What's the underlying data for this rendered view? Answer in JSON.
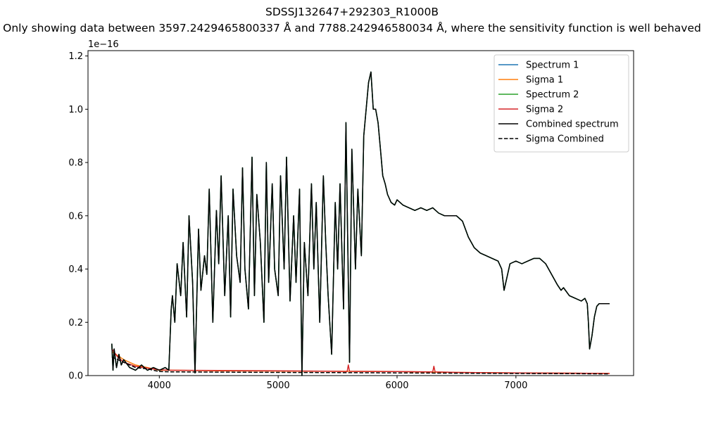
{
  "chart_data": {
    "type": "line",
    "title": "SDSSJ132647+292303_R1000B",
    "subtitle": "Only showing data between 3597.2429465800337 Å and 7788.242946580034 Å, where the sensitivity function is well behaved",
    "xlabel": "",
    "ylabel": "",
    "y_offset_label": "1e−16",
    "xlim": [
      3400,
      7990
    ],
    "ylim": [
      0,
      1.22
    ],
    "xticks": [
      4000,
      5000,
      6000,
      7000
    ],
    "yticks": [
      0.0,
      0.2,
      0.4,
      0.6,
      0.8,
      1.0,
      1.2
    ],
    "xtick_labels": [
      "4000",
      "5000",
      "6000",
      "7000"
    ],
    "ytick_labels": [
      "0.0",
      "0.2",
      "0.4",
      "0.6",
      "0.8",
      "1.0",
      "1.2"
    ],
    "grid": false,
    "legend_position": "top-right",
    "colors": {
      "spectrum1": "#1f77b4",
      "sigma1": "#ff7f0e",
      "spectrum2": "#2ca02c",
      "sigma2": "#d62728",
      "combined": "#000000",
      "sigma_combined": "#000000"
    },
    "series": [
      {
        "name": "Spectrum 1",
        "color": "#1f77b4",
        "dash": "solid",
        "x": [
          3600,
          3610,
          3620,
          3640,
          3660,
          3680,
          3700,
          3750,
          3800,
          3850,
          3900,
          3950,
          4000,
          4050,
          4080,
          4100,
          4110,
          4130,
          4150,
          4180,
          4200,
          4230,
          4250,
          4280,
          4300,
          4330,
          4350,
          4380,
          4400,
          4420,
          4450,
          4480,
          4500,
          4520,
          4550,
          4580,
          4600,
          4620,
          4650,
          4680,
          4700,
          4720,
          4750,
          4780,
          4800,
          4820,
          4850,
          4880,
          4900,
          4920,
          4950,
          4970,
          5000,
          5020,
          5050,
          5070,
          5100,
          5130,
          5150,
          5180,
          5200,
          5220,
          5250,
          5280,
          5300,
          5320,
          5350,
          5380,
          5400,
          5420,
          5450,
          5480,
          5500,
          5520,
          5550,
          5570,
          5600,
          5620,
          5650,
          5670,
          5700,
          5720,
          5740,
          5760,
          5780,
          5800,
          5820,
          5840,
          5860,
          5880,
          5900,
          5920,
          5950,
          5980,
          6000,
          6050,
          6100,
          6150,
          6200,
          6250,
          6300,
          6350,
          6400,
          6450,
          6500,
          6550,
          6600,
          6650,
          6700,
          6750,
          6800,
          6850,
          6880,
          6900,
          6950,
          7000,
          7050,
          7100,
          7150,
          7200,
          7250,
          7300,
          7350,
          7380,
          7400,
          7450,
          7500,
          7550,
          7580,
          7600,
          7610,
          7620,
          7640,
          7660,
          7680,
          7700,
          7750,
          7788
        ],
        "y": [
          0.12,
          0.02,
          0.1,
          0.03,
          0.08,
          0.04,
          0.06,
          0.03,
          0.02,
          0.04,
          0.02,
          0.03,
          0.02,
          0.03,
          0.02,
          0.25,
          0.3,
          0.2,
          0.42,
          0.3,
          0.5,
          0.22,
          0.6,
          0.35,
          0.01,
          0.55,
          0.32,
          0.45,
          0.38,
          0.7,
          0.2,
          0.62,
          0.42,
          0.75,
          0.3,
          0.6,
          0.22,
          0.7,
          0.45,
          0.35,
          0.78,
          0.4,
          0.25,
          0.82,
          0.3,
          0.68,
          0.5,
          0.2,
          0.8,
          0.35,
          0.72,
          0.4,
          0.3,
          0.75,
          0.4,
          0.82,
          0.28,
          0.6,
          0.35,
          0.7,
          0.0,
          0.5,
          0.3,
          0.72,
          0.4,
          0.65,
          0.2,
          0.75,
          0.5,
          0.3,
          0.08,
          0.65,
          0.4,
          0.72,
          0.25,
          0.95,
          0.05,
          0.85,
          0.4,
          0.7,
          0.45,
          0.9,
          1.0,
          1.1,
          1.14,
          1.0,
          1.0,
          0.95,
          0.85,
          0.75,
          0.72,
          0.68,
          0.65,
          0.64,
          0.66,
          0.64,
          0.63,
          0.62,
          0.63,
          0.62,
          0.63,
          0.61,
          0.6,
          0.6,
          0.6,
          0.58,
          0.52,
          0.48,
          0.46,
          0.45,
          0.44,
          0.43,
          0.4,
          0.32,
          0.42,
          0.43,
          0.42,
          0.43,
          0.44,
          0.44,
          0.42,
          0.38,
          0.34,
          0.32,
          0.33,
          0.3,
          0.29,
          0.28,
          0.29,
          0.27,
          0.2,
          0.1,
          0.15,
          0.22,
          0.26,
          0.27,
          0.27,
          0.27
        ]
      },
      {
        "name": "Sigma 1",
        "color": "#ff7f0e",
        "dash": "solid",
        "x": [
          3600,
          3700,
          3800,
          3900,
          4000,
          4100,
          4500,
          5000,
          5500,
          6000,
          6500,
          7000,
          7500,
          7788
        ],
        "y": [
          0.09,
          0.06,
          0.04,
          0.03,
          0.02,
          0.02,
          0.018,
          0.017,
          0.016,
          0.015,
          0.012,
          0.01,
          0.009,
          0.008
        ]
      },
      {
        "name": "Spectrum 2",
        "color": "#2ca02c",
        "dash": "solid",
        "x": [
          3600,
          3610,
          3620,
          3640,
          3660,
          3680,
          3700,
          3750,
          3800,
          3850,
          3900,
          3950,
          4000,
          4050,
          4080,
          4100,
          4110,
          4130,
          4150,
          4180,
          4200,
          4230,
          4250,
          4280,
          4300,
          4330,
          4350,
          4380,
          4400,
          4420,
          4450,
          4480,
          4500,
          4520,
          4550,
          4580,
          4600,
          4620,
          4650,
          4680,
          4700,
          4720,
          4750,
          4780,
          4800,
          4820,
          4850,
          4880,
          4900,
          4920,
          4950,
          4970,
          5000,
          5020,
          5050,
          5070,
          5100,
          5130,
          5150,
          5180,
          5200,
          5220,
          5250,
          5280,
          5300,
          5320,
          5350,
          5380,
          5400,
          5420,
          5450,
          5480,
          5500,
          5520,
          5550,
          5570,
          5600,
          5620,
          5650,
          5670,
          5700,
          5720,
          5740,
          5760,
          5780,
          5800,
          5820,
          5840,
          5860,
          5880,
          5900,
          5920,
          5950,
          5980,
          6000,
          6050,
          6100,
          6150,
          6200,
          6250,
          6300,
          6350,
          6400,
          6450,
          6500,
          6550,
          6600,
          6650,
          6700,
          6750,
          6800,
          6850,
          6880,
          6900,
          6950,
          7000,
          7050,
          7100,
          7150,
          7200,
          7250,
          7300,
          7350,
          7380,
          7400,
          7450,
          7500,
          7550,
          7580,
          7600,
          7610,
          7620,
          7640,
          7660,
          7680,
          7700,
          7750,
          7788
        ],
        "y": [
          0.12,
          0.02,
          0.1,
          0.03,
          0.08,
          0.04,
          0.06,
          0.03,
          0.02,
          0.04,
          0.02,
          0.03,
          0.02,
          0.03,
          0.02,
          0.25,
          0.3,
          0.2,
          0.42,
          0.3,
          0.5,
          0.22,
          0.6,
          0.35,
          0.01,
          0.55,
          0.32,
          0.45,
          0.38,
          0.7,
          0.2,
          0.62,
          0.42,
          0.75,
          0.3,
          0.6,
          0.22,
          0.7,
          0.45,
          0.35,
          0.78,
          0.4,
          0.25,
          0.82,
          0.3,
          0.68,
          0.5,
          0.2,
          0.8,
          0.35,
          0.72,
          0.4,
          0.3,
          0.75,
          0.4,
          0.82,
          0.28,
          0.6,
          0.35,
          0.7,
          0.0,
          0.5,
          0.3,
          0.72,
          0.4,
          0.65,
          0.2,
          0.75,
          0.5,
          0.3,
          0.08,
          0.65,
          0.4,
          0.72,
          0.25,
          0.95,
          0.05,
          0.85,
          0.4,
          0.7,
          0.45,
          0.9,
          1.0,
          1.1,
          1.14,
          1.0,
          1.0,
          0.95,
          0.85,
          0.75,
          0.72,
          0.68,
          0.65,
          0.64,
          0.66,
          0.64,
          0.63,
          0.62,
          0.63,
          0.62,
          0.63,
          0.61,
          0.6,
          0.6,
          0.6,
          0.58,
          0.52,
          0.48,
          0.46,
          0.45,
          0.44,
          0.43,
          0.4,
          0.32,
          0.42,
          0.43,
          0.42,
          0.43,
          0.44,
          0.44,
          0.42,
          0.38,
          0.34,
          0.32,
          0.33,
          0.3,
          0.29,
          0.28,
          0.29,
          0.27,
          0.2,
          0.1,
          0.15,
          0.22,
          0.26,
          0.27,
          0.27,
          0.27
        ]
      },
      {
        "name": "Sigma 2",
        "color": "#d62728",
        "dash": "solid",
        "x": [
          3600,
          3650,
          3700,
          3800,
          3900,
          4000,
          4100,
          4500,
          5000,
          5500,
          5580,
          5590,
          5600,
          6000,
          6300,
          6310,
          6320,
          6500,
          7000,
          7500,
          7788
        ],
        "y": [
          0.1,
          0.07,
          0.05,
          0.035,
          0.028,
          0.022,
          0.02,
          0.019,
          0.018,
          0.016,
          0.015,
          0.04,
          0.016,
          0.015,
          0.014,
          0.035,
          0.014,
          0.012,
          0.01,
          0.009,
          0.008
        ]
      },
      {
        "name": "Combined spectrum",
        "color": "#000000",
        "dash": "solid",
        "x": [
          3600,
          3610,
          3620,
          3640,
          3660,
          3680,
          3700,
          3750,
          3800,
          3850,
          3900,
          3950,
          4000,
          4050,
          4080,
          4100,
          4110,
          4130,
          4150,
          4180,
          4200,
          4230,
          4250,
          4280,
          4300,
          4330,
          4350,
          4380,
          4400,
          4420,
          4450,
          4480,
          4500,
          4520,
          4550,
          4580,
          4600,
          4620,
          4650,
          4680,
          4700,
          4720,
          4750,
          4780,
          4800,
          4820,
          4850,
          4880,
          4900,
          4920,
          4950,
          4970,
          5000,
          5020,
          5050,
          5070,
          5100,
          5130,
          5150,
          5180,
          5200,
          5220,
          5250,
          5280,
          5300,
          5320,
          5350,
          5380,
          5400,
          5420,
          5450,
          5480,
          5500,
          5520,
          5550,
          5570,
          5600,
          5620,
          5650,
          5670,
          5700,
          5720,
          5740,
          5760,
          5780,
          5800,
          5820,
          5840,
          5860,
          5880,
          5900,
          5920,
          5950,
          5980,
          6000,
          6050,
          6100,
          6150,
          6200,
          6250,
          6300,
          6350,
          6400,
          6450,
          6500,
          6550,
          6600,
          6650,
          6700,
          6750,
          6800,
          6850,
          6880,
          6900,
          6950,
          7000,
          7050,
          7100,
          7150,
          7200,
          7250,
          7300,
          7350,
          7380,
          7400,
          7450,
          7500,
          7550,
          7580,
          7600,
          7610,
          7620,
          7640,
          7660,
          7680,
          7700,
          7750,
          7788
        ],
        "y": [
          0.12,
          0.02,
          0.1,
          0.03,
          0.08,
          0.04,
          0.06,
          0.03,
          0.02,
          0.04,
          0.02,
          0.03,
          0.02,
          0.03,
          0.02,
          0.25,
          0.3,
          0.2,
          0.42,
          0.3,
          0.5,
          0.22,
          0.6,
          0.35,
          0.01,
          0.55,
          0.32,
          0.45,
          0.38,
          0.7,
          0.2,
          0.62,
          0.42,
          0.75,
          0.3,
          0.6,
          0.22,
          0.7,
          0.45,
          0.35,
          0.78,
          0.4,
          0.25,
          0.82,
          0.3,
          0.68,
          0.5,
          0.2,
          0.8,
          0.35,
          0.72,
          0.4,
          0.3,
          0.75,
          0.4,
          0.82,
          0.28,
          0.6,
          0.35,
          0.7,
          0.0,
          0.5,
          0.3,
          0.72,
          0.4,
          0.65,
          0.2,
          0.75,
          0.5,
          0.3,
          0.08,
          0.65,
          0.4,
          0.72,
          0.25,
          0.95,
          0.05,
          0.85,
          0.4,
          0.7,
          0.45,
          0.9,
          1.0,
          1.1,
          1.14,
          1.0,
          1.0,
          0.95,
          0.85,
          0.75,
          0.72,
          0.68,
          0.65,
          0.64,
          0.66,
          0.64,
          0.63,
          0.62,
          0.63,
          0.62,
          0.63,
          0.61,
          0.6,
          0.6,
          0.6,
          0.58,
          0.52,
          0.48,
          0.46,
          0.45,
          0.44,
          0.43,
          0.4,
          0.32,
          0.42,
          0.43,
          0.42,
          0.43,
          0.44,
          0.44,
          0.42,
          0.38,
          0.34,
          0.32,
          0.33,
          0.3,
          0.29,
          0.28,
          0.29,
          0.27,
          0.2,
          0.1,
          0.15,
          0.22,
          0.26,
          0.27,
          0.27,
          0.27
        ]
      },
      {
        "name": "Sigma Combined",
        "color": "#000000",
        "dash": "dashed",
        "x": [
          3600,
          3700,
          3800,
          3900,
          4000,
          4100,
          4500,
          5000,
          5500,
          6000,
          6500,
          7000,
          7500,
          7788
        ],
        "y": [
          0.07,
          0.05,
          0.03,
          0.025,
          0.015,
          0.014,
          0.013,
          0.012,
          0.011,
          0.01,
          0.009,
          0.008,
          0.007,
          0.006
        ]
      }
    ]
  }
}
